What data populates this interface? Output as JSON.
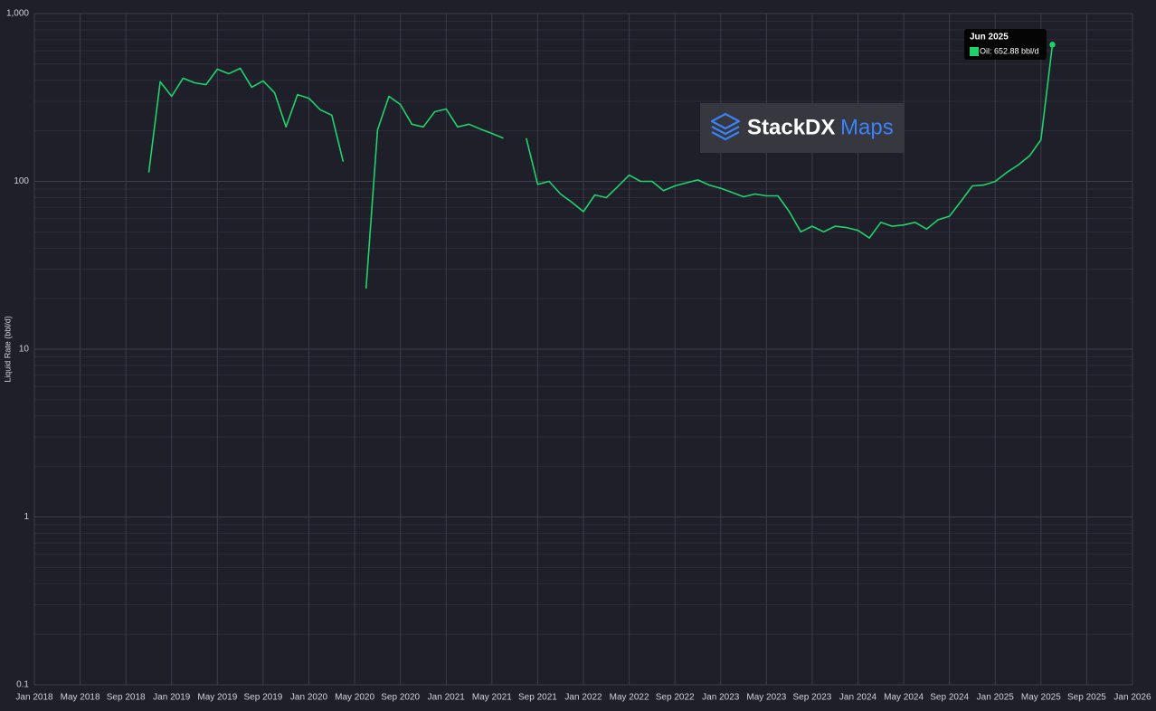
{
  "chart_data": {
    "type": "line",
    "y_label": "Liquid Rate (bbl/d)",
    "log_y": true,
    "grid": true,
    "color": "#1fd36c",
    "x": [
      "2018-11",
      "2018-12",
      "2019-01",
      "2019-02",
      "2019-03",
      "2019-04",
      "2019-05",
      "2019-06",
      "2019-07",
      "2019-08",
      "2019-09",
      "2019-10",
      "2019-11",
      "2019-12",
      "2020-01",
      "2020-02",
      "2020-03",
      "2020-04",
      "2020-05",
      "2020-06",
      "2020-07",
      "2020-08",
      "2020-09",
      "2020-10",
      "2020-11",
      "2020-12",
      "2021-01",
      "2021-02",
      "2021-03",
      "2021-04",
      "2021-05",
      "2021-06",
      "2021-07",
      "2021-08",
      "2021-09",
      "2021-10",
      "2021-11",
      "2021-12",
      "2022-01",
      "2022-02",
      "2022-03",
      "2022-04",
      "2022-05",
      "2022-06",
      "2022-07",
      "2022-08",
      "2022-09",
      "2022-10",
      "2022-11",
      "2022-12",
      "2023-01",
      "2023-02",
      "2023-03",
      "2023-04",
      "2023-05",
      "2023-06",
      "2023-07",
      "2023-08",
      "2023-09",
      "2023-10",
      "2023-11",
      "2023-12",
      "2024-01",
      "2024-02",
      "2024-03",
      "2024-04",
      "2024-05",
      "2024-06",
      "2024-07",
      "2024-08",
      "2024-09",
      "2024-10",
      "2024-11",
      "2024-12",
      "2025-01",
      "2025-02",
      "2025-03",
      "2025-04",
      "2025-05",
      "2025-06"
    ],
    "values": [
      113,
      392,
      321,
      412,
      387,
      377,
      466,
      438,
      472,
      364,
      397,
      337,
      211,
      329,
      313,
      267,
      248,
      131,
      null,
      23,
      203,
      321,
      287,
      219,
      211,
      260,
      270,
      211,
      219,
      205,
      193,
      181,
      null,
      181,
      96,
      100,
      84,
      75,
      66,
      83,
      80,
      93,
      109,
      100,
      100,
      88,
      94,
      98,
      102,
      95,
      91,
      86,
      81,
      84,
      82,
      82,
      66,
      50,
      54,
      50,
      54,
      53,
      51,
      46,
      57,
      54,
      55,
      57,
      52,
      59,
      62,
      76,
      94,
      95,
      100,
      113,
      125,
      142,
      177,
      652.88
    ],
    "xlim": [
      "2018-01",
      "2026-01"
    ],
    "xticks": [
      {
        "value": "2018-01",
        "label": "Jan 2018"
      },
      {
        "value": "2018-05",
        "label": "May 2018"
      },
      {
        "value": "2018-09",
        "label": "Sep 2018"
      },
      {
        "value": "2019-01",
        "label": "Jan 2019"
      },
      {
        "value": "2019-05",
        "label": "May 2019"
      },
      {
        "value": "2019-09",
        "label": "Sep 2019"
      },
      {
        "value": "2020-01",
        "label": "Jan 2020"
      },
      {
        "value": "2020-05",
        "label": "May 2020"
      },
      {
        "value": "2020-09",
        "label": "Sep 2020"
      },
      {
        "value": "2021-01",
        "label": "Jan 2021"
      },
      {
        "value": "2021-05",
        "label": "May 2021"
      },
      {
        "value": "2021-09",
        "label": "Sep 2021"
      },
      {
        "value": "2022-01",
        "label": "Jan 2022"
      },
      {
        "value": "2022-05",
        "label": "May 2022"
      },
      {
        "value": "2022-09",
        "label": "Sep 2022"
      },
      {
        "value": "2023-01",
        "label": "Jan 2023"
      },
      {
        "value": "2023-05",
        "label": "May 2023"
      },
      {
        "value": "2023-09",
        "label": "Sep 2023"
      },
      {
        "value": "2024-01",
        "label": "Jan 2024"
      },
      {
        "value": "2024-05",
        "label": "May 2024"
      },
      {
        "value": "2024-09",
        "label": "Sep 2024"
      },
      {
        "value": "2025-01",
        "label": "Jan 2025"
      },
      {
        "value": "2025-05",
        "label": "May 2025"
      },
      {
        "value": "2025-09",
        "label": "Sep 2025"
      },
      {
        "value": "2026-01",
        "label": "Jan 2026"
      }
    ],
    "ylim": [
      0.1,
      1000
    ],
    "yticks": [
      0.1,
      1,
      10,
      100,
      {
        "value": 1000,
        "label": "1,000"
      }
    ],
    "tooltip": {
      "title": "Jun 2025",
      "text": "Oil: 652.88 bbl/d"
    },
    "watermark": {
      "brand": "StackDX",
      "product": "Maps"
    }
  }
}
